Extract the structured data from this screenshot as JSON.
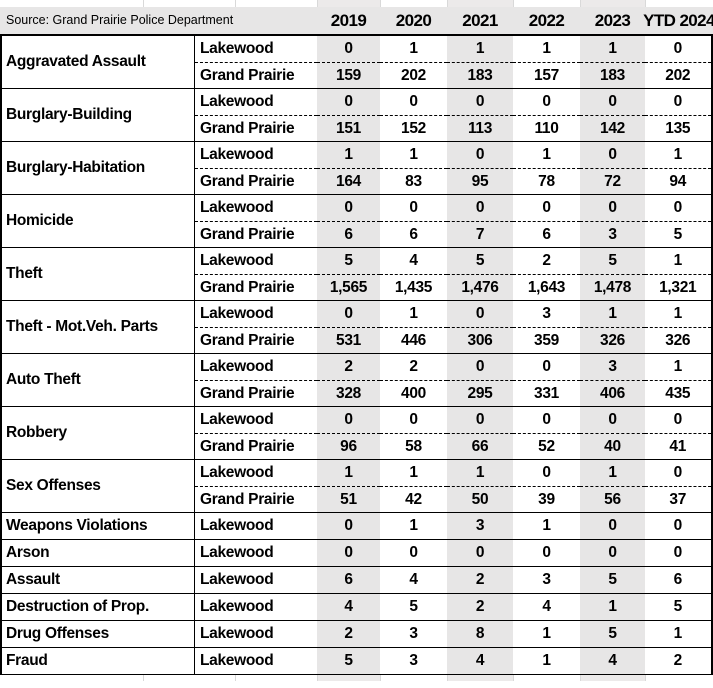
{
  "header": {
    "source_label": "Source: Grand Prairie Police Department",
    "years": [
      "2019",
      "2020",
      "2021",
      "2022",
      "2023",
      "YTD 2024"
    ]
  },
  "colors": {
    "band_gray": "#e7e6e6",
    "gridline_gray": "#d9d9d9",
    "border_black": "#000000"
  },
  "table": {
    "area_labels": [
      "Lakewood",
      "Grand Prairie"
    ],
    "groups": [
      {
        "category": "Aggravated Assault",
        "rows": [
          {
            "area": "Lakewood",
            "values": [
              "0",
              "1",
              "1",
              "1",
              "1",
              "0"
            ]
          },
          {
            "area": "Grand Prairie",
            "values": [
              "159",
              "202",
              "183",
              "157",
              "183",
              "202"
            ]
          }
        ]
      },
      {
        "category": "Burglary-Building",
        "rows": [
          {
            "area": "Lakewood",
            "values": [
              "0",
              "0",
              "0",
              "0",
              "0",
              "0"
            ]
          },
          {
            "area": "Grand Prairie",
            "values": [
              "151",
              "152",
              "113",
              "110",
              "142",
              "135"
            ]
          }
        ]
      },
      {
        "category": "Burglary-Habitation",
        "rows": [
          {
            "area": "Lakewood",
            "values": [
              "1",
              "1",
              "0",
              "1",
              "0",
              "1"
            ]
          },
          {
            "area": "Grand Prairie",
            "values": [
              "164",
              "83",
              "95",
              "78",
              "72",
              "94"
            ]
          }
        ]
      },
      {
        "category": "Homicide",
        "rows": [
          {
            "area": "Lakewood",
            "values": [
              "0",
              "0",
              "0",
              "0",
              "0",
              "0"
            ]
          },
          {
            "area": "Grand Prairie",
            "values": [
              "6",
              "6",
              "7",
              "6",
              "3",
              "5"
            ]
          }
        ]
      },
      {
        "category": "Theft",
        "rows": [
          {
            "area": "Lakewood",
            "values": [
              "5",
              "4",
              "5",
              "2",
              "5",
              "1"
            ]
          },
          {
            "area": "Grand Prairie",
            "values": [
              "1,565",
              "1,435",
              "1,476",
              "1,643",
              "1,478",
              "1,321"
            ]
          }
        ]
      },
      {
        "category": "Theft - Mot.Veh. Parts",
        "rows": [
          {
            "area": "Lakewood",
            "values": [
              "0",
              "1",
              "0",
              "3",
              "1",
              "1"
            ]
          },
          {
            "area": "Grand Prairie",
            "values": [
              "531",
              "446",
              "306",
              "359",
              "326",
              "326"
            ]
          }
        ]
      },
      {
        "category": "Auto Theft",
        "rows": [
          {
            "area": "Lakewood",
            "values": [
              "2",
              "2",
              "0",
              "0",
              "3",
              "1"
            ]
          },
          {
            "area": "Grand Prairie",
            "values": [
              "328",
              "400",
              "295",
              "331",
              "406",
              "435"
            ]
          }
        ]
      },
      {
        "category": "Robbery",
        "rows": [
          {
            "area": "Lakewood",
            "values": [
              "0",
              "0",
              "0",
              "0",
              "0",
              "0"
            ]
          },
          {
            "area": "Grand Prairie",
            "values": [
              "96",
              "58",
              "66",
              "52",
              "40",
              "41"
            ]
          }
        ]
      },
      {
        "category": "Sex Offenses",
        "rows": [
          {
            "area": "Lakewood",
            "values": [
              "1",
              "1",
              "1",
              "0",
              "1",
              "0"
            ]
          },
          {
            "area": "Grand Prairie",
            "values": [
              "51",
              "42",
              "50",
              "39",
              "56",
              "37"
            ]
          }
        ]
      },
      {
        "category": "Weapons Violations",
        "rows": [
          {
            "area": "Lakewood",
            "values": [
              "0",
              "1",
              "3",
              "1",
              "0",
              "0"
            ]
          }
        ]
      },
      {
        "category": "Arson",
        "rows": [
          {
            "area": "Lakewood",
            "values": [
              "0",
              "0",
              "0",
              "0",
              "0",
              "0"
            ]
          }
        ]
      },
      {
        "category": "Assault",
        "rows": [
          {
            "area": "Lakewood",
            "values": [
              "6",
              "4",
              "2",
              "3",
              "5",
              "6"
            ]
          }
        ]
      },
      {
        "category": "Destruction of Prop.",
        "rows": [
          {
            "area": "Lakewood",
            "values": [
              "4",
              "5",
              "2",
              "4",
              "1",
              "5"
            ]
          }
        ]
      },
      {
        "category": "Drug Offenses",
        "rows": [
          {
            "area": "Lakewood",
            "values": [
              "2",
              "3",
              "8",
              "1",
              "5",
              "1"
            ]
          }
        ]
      },
      {
        "category": "Fraud",
        "rows": [
          {
            "area": "Lakewood",
            "values": [
              "5",
              "3",
              "4",
              "1",
              "4",
              "2"
            ]
          }
        ]
      }
    ]
  }
}
